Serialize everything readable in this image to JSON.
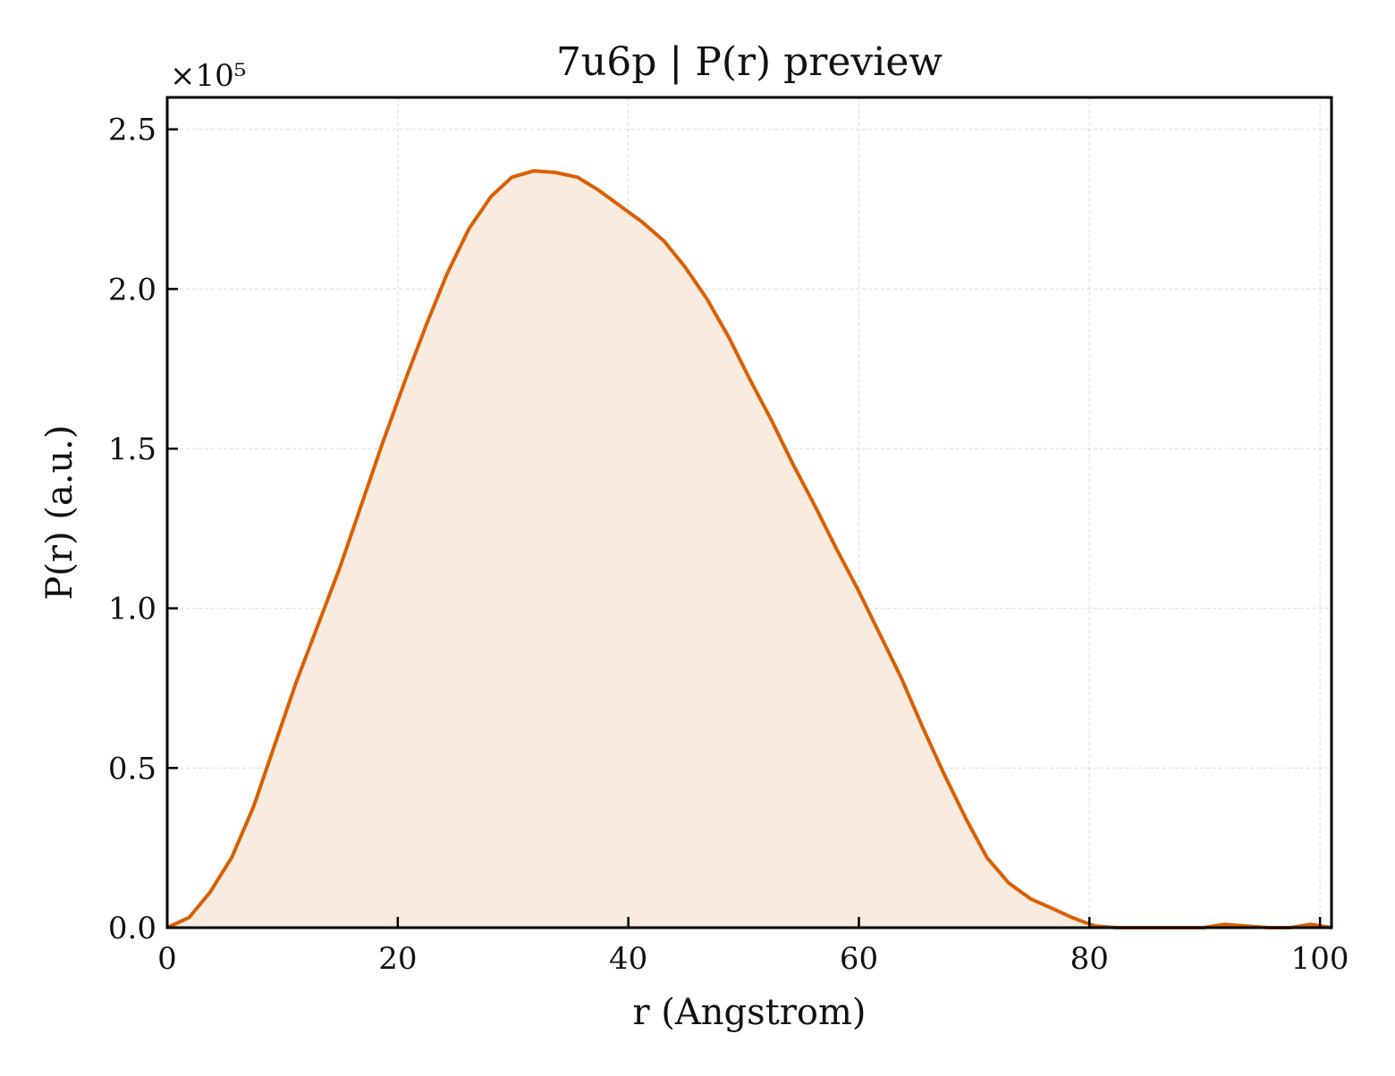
{
  "chart_data": {
    "type": "area",
    "title": "7u6p | P(r) preview",
    "xlabel": "r (Angstrom)",
    "ylabel": "P(r) (a.u.)",
    "y_multiplier_label": "×10⁵",
    "y_scale_factor": 100000,
    "xlim": [
      0,
      101
    ],
    "ylim": [
      0,
      260000
    ],
    "x_ticks": [
      0,
      20,
      40,
      60,
      80,
      100
    ],
    "y_ticks": [
      0,
      50000,
      100000,
      150000,
      200000,
      250000
    ],
    "x_tick_labels": [
      "0",
      "20",
      "40",
      "60",
      "80",
      "100"
    ],
    "y_tick_labels": [
      "0.0",
      "0.5",
      "1.0",
      "1.5",
      "2.0",
      "2.5"
    ],
    "grid": true,
    "colors": {
      "line": "#d95f02",
      "fill": "#f9ebe0",
      "grid": "#d9d9d9",
      "axis": "#000000"
    },
    "x": [
      0,
      1.9,
      3.7,
      5.6,
      7.5,
      9.3,
      11.2,
      13.1,
      15.0,
      16.8,
      18.7,
      20.6,
      22.5,
      24.3,
      26.2,
      28.1,
      29.9,
      31.8,
      33.7,
      35.6,
      37.4,
      39.3,
      41.2,
      43.1,
      44.9,
      46.8,
      48.7,
      50.5,
      52.4,
      54.3,
      56.2,
      58.0,
      59.9,
      61.8,
      63.7,
      65.5,
      67.4,
      69.3,
      71.1,
      73.0,
      74.9,
      76.8,
      78.6,
      80.5,
      82.4,
      84.3,
      86.1,
      88.0,
      89.9,
      91.7,
      93.6,
      95.5,
      97.4,
      99.2,
      101.0
    ],
    "y": [
      0,
      3200,
      11000,
      22000,
      38000,
      57000,
      77000,
      95000,
      113000,
      132000,
      152000,
      171000,
      189000,
      205000,
      219000,
      229000,
      235000,
      237000,
      236500,
      235000,
      231000,
      226000,
      221000,
      215000,
      207000,
      197000,
      185000,
      172000,
      159000,
      145000,
      132000,
      119000,
      106000,
      92000,
      78000,
      63000,
      48000,
      34000,
      22000,
      14000,
      9000,
      6000,
      3000,
      500,
      0,
      0,
      0,
      0,
      0,
      1000,
      500,
      0,
      0,
      1000,
      0
    ]
  }
}
